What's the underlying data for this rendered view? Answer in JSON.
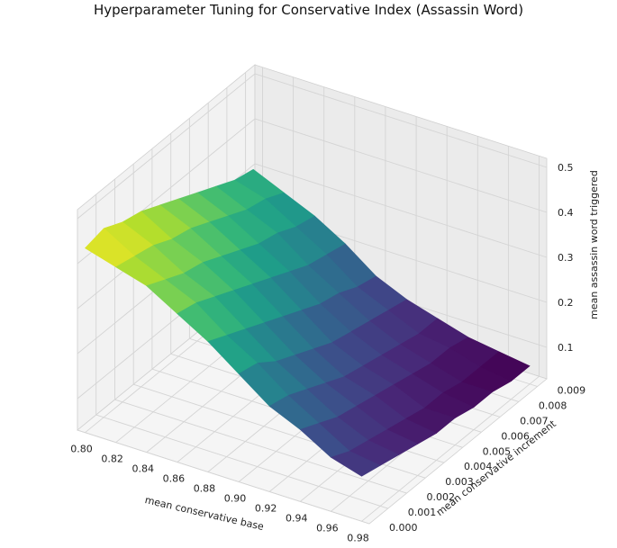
{
  "chart_data": {
    "type": "surface",
    "title": "Hyperparameter Tuning for Conservative Index (Assassin Word)",
    "xlabel": "mean conservative base",
    "ylabel": "mean conservative increment",
    "zlabel": "mean assassin word triggered",
    "xlim": [
      0.795,
      0.985
    ],
    "ylim": [
      0.0,
      0.0095
    ],
    "zlim": [
      0.03,
      0.52
    ],
    "xticks": [
      "0.80",
      "0.82",
      "0.84",
      "0.86",
      "0.88",
      "0.90",
      "0.92",
      "0.94",
      "0.96",
      "0.98"
    ],
    "yticks": [
      "0.000",
      "0.001",
      "0.002",
      "0.003",
      "0.004",
      "0.005",
      "0.006",
      "0.007",
      "0.008",
      "0.009"
    ],
    "zticks": [
      "0.1",
      "0.2",
      "0.3",
      "0.4",
      "0.5"
    ],
    "colormap": "viridis",
    "x": [
      0.8,
      0.82,
      0.84,
      0.86,
      0.88,
      0.9,
      0.92,
      0.94,
      0.96,
      0.98
    ],
    "y": [
      0.0,
      0.001,
      0.002,
      0.003,
      0.004,
      0.005,
      0.006,
      0.007,
      0.008,
      0.009
    ],
    "z": [
      [
        0.44,
        0.42,
        0.4,
        0.36,
        0.32,
        0.27,
        0.22,
        0.19,
        0.15,
        0.13
      ],
      [
        0.45,
        0.41,
        0.38,
        0.35,
        0.3,
        0.26,
        0.21,
        0.17,
        0.13,
        0.12
      ],
      [
        0.43,
        0.4,
        0.36,
        0.33,
        0.28,
        0.23,
        0.19,
        0.15,
        0.12,
        0.11
      ],
      [
        0.42,
        0.38,
        0.35,
        0.31,
        0.26,
        0.21,
        0.17,
        0.14,
        0.11,
        0.1
      ],
      [
        0.4,
        0.37,
        0.33,
        0.29,
        0.24,
        0.19,
        0.15,
        0.13,
        0.1,
        0.09
      ],
      [
        0.38,
        0.35,
        0.31,
        0.27,
        0.22,
        0.17,
        0.14,
        0.12,
        0.09,
        0.09
      ],
      [
        0.36,
        0.33,
        0.29,
        0.25,
        0.2,
        0.16,
        0.13,
        0.11,
        0.09,
        0.08
      ],
      [
        0.34,
        0.31,
        0.28,
        0.23,
        0.19,
        0.15,
        0.12,
        0.1,
        0.08,
        0.08
      ],
      [
        0.32,
        0.3,
        0.26,
        0.22,
        0.17,
        0.14,
        0.11,
        0.1,
        0.08,
        0.07
      ],
      [
        0.31,
        0.28,
        0.25,
        0.21,
        0.16,
        0.13,
        0.11,
        0.09,
        0.08,
        0.07
      ]
    ]
  }
}
